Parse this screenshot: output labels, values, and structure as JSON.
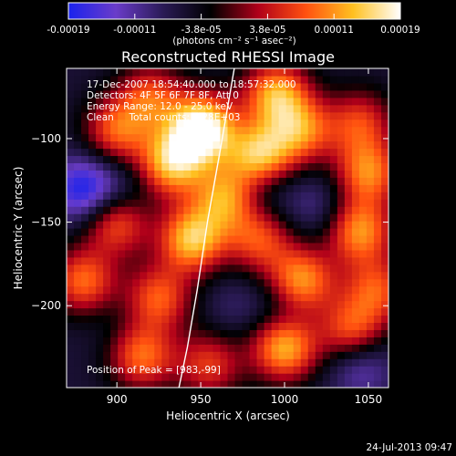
{
  "chart_data": {
    "type": "heatmap",
    "title": "Reconstructed RHESSI Image",
    "xlabel": "Heliocentric X (arcsec)",
    "ylabel": "Heliocentric Y (arcsec)",
    "xlim": [
      870,
      1062
    ],
    "ylim": [
      -249,
      -58
    ],
    "x_ticks": [
      "900",
      "950",
      "1000",
      "1050"
    ],
    "y_ticks": [
      "-100",
      "-150",
      "-200"
    ],
    "grid": false,
    "colorbar": {
      "ticks": [
        "-0.00019",
        "-0.00011",
        "-3.8e-05",
        "3.8e-05",
        "0.00011",
        "0.00019"
      ],
      "unit_label": "(photons cm⁻² s⁻¹ asec⁻²)",
      "range": [
        -0.00019,
        0.00019
      ],
      "colors": [
        "#1a22ee",
        "#6a3cc9",
        "#2a1a55",
        "#000000",
        "#b0001a",
        "#ff5010",
        "#ffc020",
        "#ffffff"
      ]
    },
    "annotations": [
      "17-Dec-2007 18:54:40.000 to 18:57:32.000",
      "Detectors: 4F 5F 6F 7F 8F, Att 0",
      "Energy Range: 12.0 - 25.0 keV",
      "Clean     Total counts: 4.28E+03"
    ],
    "peak_label": "Position of Peak = [983,-99]",
    "limb_curve": {
      "x": [
        970,
        962,
        954,
        948,
        942,
        937
      ],
      "y": [
        -58,
        -105,
        -150,
        -190,
        -225,
        -249
      ]
    },
    "blobs": [
      {
        "x": 950,
        "y": -95,
        "v": 0.00019
      },
      {
        "x": 932,
        "y": -115,
        "v": 0.00013
      },
      {
        "x": 900,
        "y": -95,
        "v": 8e-05
      },
      {
        "x": 920,
        "y": -75,
        "v": 7e-05
      },
      {
        "x": 995,
        "y": -73,
        "v": 0.00012
      },
      {
        "x": 1010,
        "y": -95,
        "v": 9e-05
      },
      {
        "x": 985,
        "y": -110,
        "v": 0.00014
      },
      {
        "x": 965,
        "y": -135,
        "v": 0.00011
      },
      {
        "x": 1050,
        "y": -120,
        "v": 0.0001
      },
      {
        "x": 1045,
        "y": -90,
        "v": 6e-05
      },
      {
        "x": 900,
        "y": -150,
        "v": 8e-05
      },
      {
        "x": 945,
        "y": -160,
        "v": 0.00014
      },
      {
        "x": 985,
        "y": -160,
        "v": 7e-05
      },
      {
        "x": 1045,
        "y": -155,
        "v": 0.00011
      },
      {
        "x": 880,
        "y": -185,
        "v": 9e-05
      },
      {
        "x": 925,
        "y": -195,
        "v": 8e-05
      },
      {
        "x": 1010,
        "y": -185,
        "v": 0.00012
      },
      {
        "x": 1055,
        "y": -190,
        "v": 7e-05
      },
      {
        "x": 915,
        "y": -230,
        "v": 9e-05
      },
      {
        "x": 955,
        "y": -235,
        "v": 6e-05
      },
      {
        "x": 1000,
        "y": -225,
        "v": 0.00013
      },
      {
        "x": 1040,
        "y": -215,
        "v": 8e-05
      },
      {
        "x": 880,
        "y": -130,
        "v": -0.00019
      },
      {
        "x": 905,
        "y": -130,
        "v": -0.0001
      },
      {
        "x": 985,
        "y": -130,
        "v": -0.00012
      },
      {
        "x": 1020,
        "y": -140,
        "v": -0.00011
      },
      {
        "x": 1000,
        "y": -200,
        "v": -0.0001
      },
      {
        "x": 1045,
        "y": -235,
        "v": -0.00014
      },
      {
        "x": 970,
        "y": -200,
        "v": -9e-05
      },
      {
        "x": 895,
        "y": -210,
        "v": -7e-05
      },
      {
        "x": 955,
        "y": -85,
        "v": -3e-05
      }
    ]
  },
  "timestamp": "24-Jul-2013 09:47"
}
